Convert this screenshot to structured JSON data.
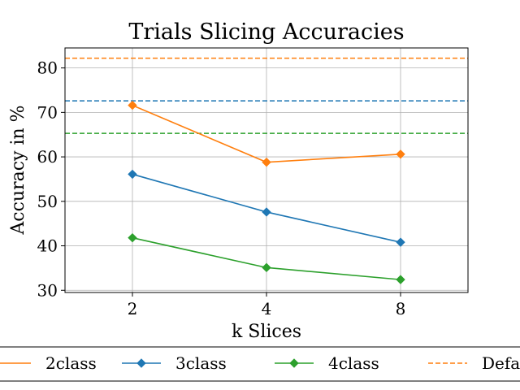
{
  "chart_data": {
    "type": "line",
    "title": "Trials Slicing Accuracies",
    "xlabel": "k Slices",
    "ylabel": "Accuracy in %",
    "x": [
      2,
      4,
      8
    ],
    "x_tick_labels": [
      "2",
      "4",
      "8"
    ],
    "y_tick_labels": [
      "30",
      "40",
      "50",
      "60",
      "70",
      "80"
    ],
    "y_ticks": [
      30,
      40,
      50,
      60,
      70,
      80
    ],
    "ylim": [
      29.5,
      84.5
    ],
    "grid": true,
    "series": [
      {
        "name": "2class",
        "color": "#ff7f0e",
        "values": [
          71.6,
          58.8,
          60.6
        ]
      },
      {
        "name": "3class",
        "color": "#1f77b4",
        "values": [
          56.1,
          47.6,
          40.8
        ]
      },
      {
        "name": "4class",
        "color": "#2ca02c",
        "values": [
          41.8,
          35.1,
          32.4
        ]
      }
    ],
    "reference_lines": [
      {
        "color": "#ff7f0e",
        "value": 82.2
      },
      {
        "color": "#1f77b4",
        "value": 72.6
      },
      {
        "color": "#2ca02c",
        "value": 65.3
      }
    ],
    "legend": {
      "placement": "bottom",
      "entries": [
        "2class",
        "3class",
        "4class",
        "Defa"
      ]
    }
  }
}
